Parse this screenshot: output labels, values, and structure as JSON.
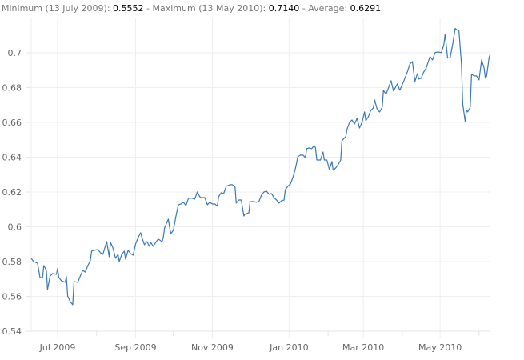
{
  "summary": {
    "min_label": "Minimum (13 July 2009):",
    "min_value": "0.5552",
    "sep1": " - ",
    "max_label": "Maximum (13 May 2010):",
    "max_value": "0.7140",
    "sep2": " - ",
    "avg_label": "Average:",
    "avg_value": "0.6291"
  },
  "chart_data": {
    "type": "line",
    "title": "",
    "xlabel": "",
    "ylabel": "",
    "x_start_date": "2009-06-10",
    "x_unit": "days since start date",
    "xlim": [
      0,
      365
    ],
    "ylim": [
      0.54,
      0.72
    ],
    "grid": true,
    "line_color": "#3a78b5",
    "y_ticks": [
      0.54,
      0.56,
      0.58,
      0.6,
      0.62,
      0.64,
      0.66,
      0.68,
      0.7
    ],
    "y_tick_labels": [
      "0.54",
      "0.56",
      "0.58",
      "0.6",
      "0.62",
      "0.64",
      "0.66",
      "0.68",
      "0.7"
    ],
    "x_ticks": [
      {
        "day": 21,
        "label": "Jul 2009"
      },
      {
        "day": 83,
        "label": "Sep 2009"
      },
      {
        "day": 144,
        "label": "Nov 2009"
      },
      {
        "day": 205,
        "label": "Jan 2010"
      },
      {
        "day": 264,
        "label": "Mar 2010"
      },
      {
        "day": 325,
        "label": "May 2010"
      }
    ],
    "x_minor_ticks": [
      52,
      113,
      174,
      236,
      295,
      356
    ],
    "series": [
      {
        "name": "value",
        "points": [
          [
            0,
            0.5819
          ],
          [
            2,
            0.58
          ],
          [
            5,
            0.5791
          ],
          [
            7,
            0.5708
          ],
          [
            9,
            0.5708
          ],
          [
            10,
            0.5777
          ],
          [
            12,
            0.575
          ],
          [
            13,
            0.5639
          ],
          [
            15,
            0.5717
          ],
          [
            17,
            0.5731
          ],
          [
            20,
            0.5727
          ],
          [
            21,
            0.5759
          ],
          [
            22,
            0.5708
          ],
          [
            24,
            0.569
          ],
          [
            27,
            0.5681
          ],
          [
            28,
            0.5713
          ],
          [
            29,
            0.5602
          ],
          [
            31,
            0.557
          ],
          [
            33,
            0.5552
          ],
          [
            34,
            0.5685
          ],
          [
            37,
            0.5681
          ],
          [
            39,
            0.5717
          ],
          [
            41,
            0.575
          ],
          [
            43,
            0.574
          ],
          [
            45,
            0.5777
          ],
          [
            47,
            0.5805
          ],
          [
            48,
            0.586
          ],
          [
            50,
            0.5865
          ],
          [
            53,
            0.5869
          ],
          [
            55,
            0.5851
          ],
          [
            57,
            0.5842
          ],
          [
            59,
            0.5892
          ],
          [
            60,
            0.5915
          ],
          [
            62,
            0.5828
          ],
          [
            63,
            0.5911
          ],
          [
            65,
            0.5878
          ],
          [
            67,
            0.5819
          ],
          [
            69,
            0.5842
          ],
          [
            70,
            0.58
          ],
          [
            72,
            0.5842
          ],
          [
            74,
            0.586
          ],
          [
            75,
            0.5814
          ],
          [
            77,
            0.5865
          ],
          [
            79,
            0.5846
          ],
          [
            81,
            0.5837
          ],
          [
            83,
            0.5901
          ],
          [
            85,
            0.5938
          ],
          [
            87,
            0.5966
          ],
          [
            88,
            0.5938
          ],
          [
            90,
            0.5897
          ],
          [
            92,
            0.5915
          ],
          [
            94,
            0.5888
          ],
          [
            95,
            0.5911
          ],
          [
            97,
            0.5888
          ],
          [
            99,
            0.5911
          ],
          [
            101,
            0.5929
          ],
          [
            104,
            0.5915
          ],
          [
            105,
            0.5938
          ],
          [
            106,
            0.5993
          ],
          [
            109,
            0.6044
          ],
          [
            110,
            0.5998
          ],
          [
            111,
            0.5961
          ],
          [
            113,
            0.598
          ],
          [
            115,
            0.6058
          ],
          [
            117,
            0.6127
          ],
          [
            119,
            0.6131
          ],
          [
            121,
            0.6141
          ],
          [
            123,
            0.6122
          ],
          [
            125,
            0.6164
          ],
          [
            128,
            0.6164
          ],
          [
            130,
            0.6159
          ],
          [
            132,
            0.62
          ],
          [
            134,
            0.6173
          ],
          [
            135,
            0.6168
          ],
          [
            138,
            0.6168
          ],
          [
            140,
            0.6127
          ],
          [
            142,
            0.6141
          ],
          [
            144,
            0.6131
          ],
          [
            146,
            0.6131
          ],
          [
            148,
            0.6118
          ],
          [
            149,
            0.6173
          ],
          [
            151,
            0.6196
          ],
          [
            153,
            0.6191
          ],
          [
            155,
            0.6233
          ],
          [
            158,
            0.6242
          ],
          [
            160,
            0.6242
          ],
          [
            162,
            0.6228
          ],
          [
            163,
            0.6136
          ],
          [
            165,
            0.6154
          ],
          [
            167,
            0.6154
          ],
          [
            169,
            0.6062
          ],
          [
            170,
            0.6072
          ],
          [
            173,
            0.6081
          ],
          [
            174,
            0.6145
          ],
          [
            177,
            0.6145
          ],
          [
            179,
            0.6141
          ],
          [
            181,
            0.6145
          ],
          [
            183,
            0.6182
          ],
          [
            185,
            0.62
          ],
          [
            187,
            0.6205
          ],
          [
            189,
            0.6187
          ],
          [
            191,
            0.6191
          ],
          [
            193,
            0.6168
          ],
          [
            195,
            0.6154
          ],
          [
            197,
            0.6136
          ],
          [
            199,
            0.615
          ],
          [
            201,
            0.6154
          ],
          [
            202,
            0.6214
          ],
          [
            204,
            0.6233
          ],
          [
            206,
            0.6246
          ],
          [
            208,
            0.6283
          ],
          [
            210,
            0.6334
          ],
          [
            212,
            0.6403
          ],
          [
            214,
            0.6412
          ],
          [
            216,
            0.6412
          ],
          [
            218,
            0.6398
          ],
          [
            219,
            0.6449
          ],
          [
            221,
            0.6453
          ],
          [
            223,
            0.6449
          ],
          [
            225,
            0.6467
          ],
          [
            226,
            0.6453
          ],
          [
            227,
            0.6384
          ],
          [
            230,
            0.6384
          ],
          [
            232,
            0.643
          ],
          [
            233,
            0.6384
          ],
          [
            235,
            0.6384
          ],
          [
            237,
            0.6329
          ],
          [
            239,
            0.6375
          ],
          [
            240,
            0.6325
          ],
          [
            242,
            0.6338
          ],
          [
            244,
            0.6357
          ],
          [
            246,
            0.6384
          ],
          [
            247,
            0.6495
          ],
          [
            250,
            0.6518
          ],
          [
            251,
            0.6559
          ],
          [
            253,
            0.6601
          ],
          [
            255,
            0.6614
          ],
          [
            257,
            0.6591
          ],
          [
            259,
            0.6624
          ],
          [
            261,
            0.6568
          ],
          [
            263,
            0.6601
          ],
          [
            265,
            0.666
          ],
          [
            266,
            0.661
          ],
          [
            268,
            0.6633
          ],
          [
            270,
            0.667
          ],
          [
            272,
            0.6683
          ],
          [
            273,
            0.6729
          ],
          [
            275,
            0.6674
          ],
          [
            277,
            0.666
          ],
          [
            279,
            0.6688
          ],
          [
            280,
            0.6785
          ],
          [
            282,
            0.6762
          ],
          [
            284,
            0.6798
          ],
          [
            286,
            0.684
          ],
          [
            288,
            0.678
          ],
          [
            289,
            0.6794
          ],
          [
            291,
            0.6821
          ],
          [
            293,
            0.6785
          ],
          [
            295,
            0.6817
          ],
          [
            297,
            0.6854
          ],
          [
            299,
            0.689
          ],
          [
            301,
            0.6936
          ],
          [
            303,
            0.695
          ],
          [
            305,
            0.6835
          ],
          [
            307,
            0.6881
          ],
          [
            308,
            0.6849
          ],
          [
            310,
            0.6854
          ],
          [
            312,
            0.689
          ],
          [
            314,
            0.6913
          ],
          [
            315,
            0.6936
          ],
          [
            317,
            0.6978
          ],
          [
            319,
            0.6959
          ],
          [
            321,
            0.7001
          ],
          [
            323,
            0.7005
          ],
          [
            326,
            0.7001
          ],
          [
            328,
            0.7047
          ],
          [
            329,
            0.7107
          ],
          [
            331,
            0.6969
          ],
          [
            333,
            0.6973
          ],
          [
            335,
            0.7047
          ],
          [
            337,
            0.714
          ],
          [
            338,
            0.7134
          ],
          [
            340,
            0.7125
          ],
          [
            342,
            0.6936
          ],
          [
            343,
            0.6706
          ],
          [
            345,
            0.6605
          ],
          [
            346,
            0.667
          ],
          [
            347,
            0.666
          ],
          [
            349,
            0.6688
          ],
          [
            350,
            0.6877
          ],
          [
            352,
            0.6867
          ],
          [
            354,
            0.6867
          ],
          [
            356,
            0.6844
          ],
          [
            358,
            0.6959
          ],
          [
            360,
            0.6913
          ],
          [
            361,
            0.6854
          ],
          [
            362,
            0.6867
          ],
          [
            364,
            0.6973
          ],
          [
            365,
            0.6996
          ]
        ]
      }
    ]
  }
}
